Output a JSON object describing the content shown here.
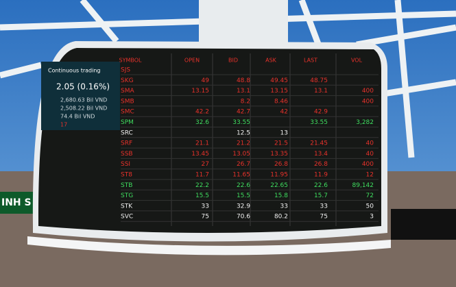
{
  "sign": "INH S",
  "summary": {
    "status": "Continuous trading",
    "change": "2.05 (0.16%)",
    "lines": [
      "2,680.63 Bil VND",
      "2,508.22 Bil VND",
      "74.4 Bil VND",
      "17"
    ]
  },
  "table": {
    "header": [
      "SYMBOL",
      "OPEN",
      "BID",
      "ASK",
      "LAST",
      "VOL"
    ],
    "rows": [
      {
        "symbol": "SJS",
        "color": "#e8322b",
        "cells": [
          null,
          null,
          null,
          null,
          null
        ]
      },
      {
        "symbol": "SKG",
        "color": "#e8322b",
        "cells": [
          "49",
          "48.8",
          "49.45",
          "48.75",
          null
        ]
      },
      {
        "symbol": "SMA",
        "color": "#e8322b",
        "cells": [
          "13.15",
          "13.1",
          "13.15",
          "13.1",
          "400"
        ]
      },
      {
        "symbol": "SMB",
        "color": "#e8322b",
        "cells": [
          null,
          "8.2",
          "8.46",
          null,
          "400"
        ]
      },
      {
        "symbol": "SMC",
        "color": "#e8322b",
        "cells": [
          "42.2",
          "42.7",
          "42",
          "42.9",
          null
        ]
      },
      {
        "symbol": "SPM",
        "color": "#3fdc5f",
        "cells": [
          "32.6",
          "33.55",
          null,
          "33.55",
          "3,282"
        ]
      },
      {
        "symbol": "SRC",
        "color": "#f2f2f2",
        "cells": [
          null,
          "12.5",
          "13",
          null,
          null
        ]
      },
      {
        "symbol": "SRF",
        "color": "#e8322b",
        "cells": [
          "21.1",
          "21.2",
          "21.5",
          "21.45",
          "40"
        ]
      },
      {
        "symbol": "SSB",
        "color": "#e8322b",
        "cells": [
          "13.45",
          "13.05",
          "13.35",
          "13.4",
          "40"
        ]
      },
      {
        "symbol": "SSI",
        "color": "#e8322b",
        "cells": [
          "27",
          "26.7",
          "26.8",
          "26.8",
          "400"
        ]
      },
      {
        "symbol": "ST8",
        "color": "#e8322b",
        "cells": [
          "11.7",
          "11.65",
          "11.95",
          "11.9",
          "12"
        ]
      },
      {
        "symbol": "STB",
        "color": "#3fdc5f",
        "cells": [
          "22.2",
          "22.6",
          "22.65",
          "22.6",
          "89,142"
        ]
      },
      {
        "symbol": "STG",
        "color": "#3fdc5f",
        "cells": [
          "15.5",
          "15.5",
          "15.8",
          "15.7",
          "72"
        ]
      },
      {
        "symbol": "STK",
        "color": "#f2f2f2",
        "cells": [
          "33",
          "32.9",
          "33",
          "33",
          "50"
        ]
      },
      {
        "symbol": "SVC",
        "color": "#f2f2f2",
        "cells": [
          "75",
          "70.6",
          "80.2",
          "75",
          "3"
        ]
      }
    ]
  }
}
